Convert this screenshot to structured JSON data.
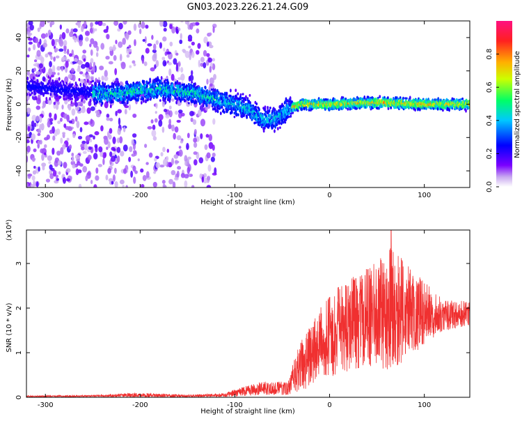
{
  "figure_title": "GN03.2023.226.21.24.G09",
  "chart_data": [
    {
      "type": "heatmap",
      "title": "GN03.2023.226.21.24.G09",
      "xlabel": "Height of straight line (km)",
      "ylabel": "Frequency (Hz)",
      "xlim": [
        -320,
        148
      ],
      "ylim": [
        -50,
        50
      ],
      "x_ticks": [
        -300,
        -200,
        -100,
        0,
        100
      ],
      "y_ticks": [
        -40,
        -20,
        0,
        20,
        40
      ],
      "grid": false,
      "colorbar": {
        "label": "Normalized spectral amplitude",
        "range": [
          0,
          1
        ],
        "ticks": [
          "0.0",
          "0.2",
          "0.4",
          "0.6",
          "0.8"
        ],
        "colors": [
          "#ffffff",
          "#c8a8f0",
          "#7a00ff",
          "#0000ff",
          "#00c8ff",
          "#00ff66",
          "#ccff00",
          "#ffb000",
          "#ff2020",
          "#ff1080"
        ]
      },
      "center_track": [
        {
          "x": -270,
          "freq": 8
        },
        {
          "x": -250,
          "freq": 7
        },
        {
          "x": -230,
          "freq": 6
        },
        {
          "x": -200,
          "freq": 8
        },
        {
          "x": -180,
          "freq": 9
        },
        {
          "x": -160,
          "freq": 8
        },
        {
          "x": -140,
          "freq": 6
        },
        {
          "x": -120,
          "freq": 3
        },
        {
          "x": -100,
          "freq": 0
        },
        {
          "x": -85,
          "freq": -3
        },
        {
          "x": -75,
          "freq": -8
        },
        {
          "x": -65,
          "freq": -10
        },
        {
          "x": -55,
          "freq": -8
        },
        {
          "x": -45,
          "freq": -3
        },
        {
          "x": -30,
          "freq": 0
        },
        {
          "x": 0,
          "freq": 0
        },
        {
          "x": 50,
          "freq": 1
        },
        {
          "x": 100,
          "freq": 0
        },
        {
          "x": 148,
          "freq": 0
        }
      ]
    },
    {
      "type": "line",
      "xlabel": "Height of straight line (km)",
      "ylabel": "SNR (10 * v/v)",
      "y_multiplier": "(x10⁴)",
      "xlim": [
        -320,
        148
      ],
      "ylim": [
        0,
        3.75
      ],
      "x_ticks": [
        -300,
        -200,
        -100,
        0,
        100
      ],
      "y_ticks": [
        0,
        1,
        2,
        3
      ],
      "grid": false,
      "series": [
        {
          "color": "#f03030",
          "envelope": [
            {
              "x": -320,
              "mean": 0.02,
              "amp": 0.02
            },
            {
              "x": -250,
              "mean": 0.03,
              "amp": 0.02
            },
            {
              "x": -200,
              "mean": 0.05,
              "amp": 0.05
            },
            {
              "x": -150,
              "mean": 0.03,
              "amp": 0.03
            },
            {
              "x": -110,
              "mean": 0.05,
              "amp": 0.04
            },
            {
              "x": -90,
              "mean": 0.15,
              "amp": 0.12
            },
            {
              "x": -70,
              "mean": 0.2,
              "amp": 0.15
            },
            {
              "x": -45,
              "mean": 0.2,
              "amp": 0.15
            },
            {
              "x": -30,
              "mean": 0.7,
              "amp": 0.6
            },
            {
              "x": -10,
              "mean": 1.2,
              "amp": 0.8
            },
            {
              "x": 10,
              "mean": 1.5,
              "amp": 1.0
            },
            {
              "x": 40,
              "mean": 1.8,
              "amp": 1.1
            },
            {
              "x": 65,
              "mean": 2.0,
              "amp": 1.4
            },
            {
              "x": 90,
              "mean": 1.9,
              "amp": 0.9
            },
            {
              "x": 120,
              "mean": 1.85,
              "amp": 0.35
            },
            {
              "x": 148,
              "mean": 1.85,
              "amp": 0.3
            }
          ],
          "peak": {
            "x": 65,
            "y": 3.75
          }
        }
      ]
    }
  ]
}
